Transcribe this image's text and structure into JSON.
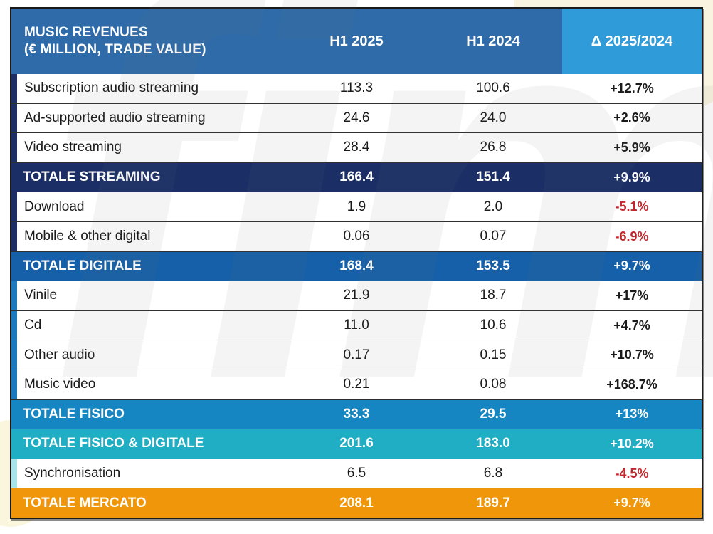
{
  "header": {
    "title_line1": "MUSIC REVENUES",
    "title_line2": "(€ MILLION, TRADE VALUE)",
    "col_h1_2025": "H1 2025",
    "col_h1_2024": "H1 2024",
    "col_delta": "Δ 2025/2024"
  },
  "colors": {
    "header_bg": "#2E6BA8",
    "header_delta_bg": "#2F9BD8",
    "navy": "#1B2F66",
    "mid_blue": "#1560A8",
    "bright_blue": "#1586C2",
    "stripe_blue": "#1B79BD",
    "teal": "#1FAEC4",
    "pale_teal": "#A7E3EA",
    "orange": "#F0960A",
    "negative_red": "#C1272D",
    "text_dark": "#1A1A1A"
  },
  "chart_data": {
    "type": "table",
    "title": "MUSIC REVENUES (€ MILLION, TRADE VALUE)",
    "columns": [
      "MUSIC REVENUES (€ MILLION, TRADE VALUE)",
      "H1 2025",
      "H1 2024",
      "Δ 2025/2024"
    ],
    "rows": [
      {
        "label": "Subscription audio streaming",
        "h1_2025": "113.3",
        "h1_2024": "100.6",
        "delta": "+12.7%",
        "style": "data",
        "stripe": "navy",
        "delta_style": "positive"
      },
      {
        "label": "Ad-supported audio streaming",
        "h1_2025": "24.6",
        "h1_2024": "24.0",
        "delta": "+2.6%",
        "style": "data",
        "stripe": "navy",
        "delta_style": "positive"
      },
      {
        "label": "Video streaming",
        "h1_2025": "28.4",
        "h1_2024": "26.8",
        "delta": "+5.9%",
        "style": "data",
        "stripe": "navy",
        "delta_style": "positive"
      },
      {
        "label": "TOTALE STREAMING",
        "h1_2025": "166.4",
        "h1_2024": "151.4",
        "delta": "+9.9%",
        "style": "total",
        "bg": "navy",
        "delta_style": "white"
      },
      {
        "label": "Download",
        "h1_2025": "1.9",
        "h1_2024": "2.0",
        "delta": "-5.1%",
        "style": "data",
        "stripe": "navy",
        "delta_style": "negative"
      },
      {
        "label": "Mobile & other digital",
        "h1_2025": "0.06",
        "h1_2024": "0.07",
        "delta": "-6.9%",
        "style": "data",
        "stripe": "navy",
        "delta_style": "negative"
      },
      {
        "label": "TOTALE DIGITALE",
        "h1_2025": "168.4",
        "h1_2024": "153.5",
        "delta": "+9.7%",
        "style": "total",
        "bg": "mid_blue",
        "delta_style": "white"
      },
      {
        "label": "Vinile",
        "h1_2025": "21.9",
        "h1_2024": "18.7",
        "delta": "+17%",
        "style": "data",
        "stripe": "stripe_blue",
        "delta_style": "positive"
      },
      {
        "label": "Cd",
        "h1_2025": "11.0",
        "h1_2024": "10.6",
        "delta": "+4.7%",
        "style": "data",
        "stripe": "stripe_blue",
        "delta_style": "positive"
      },
      {
        "label": "Other audio",
        "h1_2025": "0.17",
        "h1_2024": "0.15",
        "delta": "+10.7%",
        "style": "data",
        "stripe": "stripe_blue",
        "delta_style": "positive"
      },
      {
        "label": "Music video",
        "h1_2025": "0.21",
        "h1_2024": "0.08",
        "delta": "+168.7%",
        "style": "data",
        "stripe": "stripe_blue",
        "delta_style": "positive"
      },
      {
        "label": "TOTALE FISICO",
        "h1_2025": "33.3",
        "h1_2024": "29.5",
        "delta": "+13%",
        "style": "total",
        "bg": "bright_blue",
        "delta_style": "white"
      },
      {
        "label": "TOTALE FISICO & DIGITALE",
        "h1_2025": "201.6",
        "h1_2024": "183.0",
        "delta": "+10.2%",
        "style": "total",
        "bg": "teal",
        "delta_style": "white",
        "sep": "light"
      },
      {
        "label": "Synchronisation",
        "h1_2025": "6.5",
        "h1_2024": "6.8",
        "delta": "-4.5%",
        "style": "data",
        "stripe": "pale_teal",
        "delta_style": "negative"
      },
      {
        "label": "TOTALE MERCATO",
        "h1_2025": "208.1",
        "h1_2024": "189.7",
        "delta": "+9.7%",
        "style": "total",
        "bg": "orange",
        "delta_style": "white"
      }
    ]
  },
  "watermark": {
    "text": "fimi"
  }
}
